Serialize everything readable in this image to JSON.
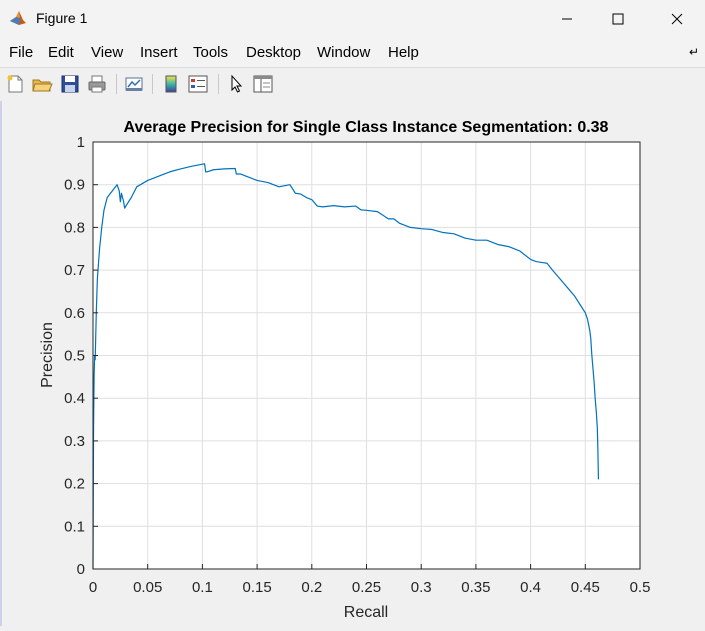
{
  "window": {
    "title": "Figure 1",
    "minimize_icon": "minimize-icon",
    "maximize_icon": "maximize-icon",
    "close_icon": "close-icon"
  },
  "menu": {
    "items": [
      "File",
      "Edit",
      "View",
      "Insert",
      "Tools",
      "Desktop",
      "Window",
      "Help"
    ]
  },
  "toolbar": {
    "buttons": [
      "new-figure-icon",
      "open-file-icon",
      "save-icon",
      "print-icon",
      "link-plot-icon",
      "colorbar-icon",
      "legend-icon",
      "pointer-icon",
      "property-editor-icon"
    ]
  },
  "chart_data": {
    "type": "line",
    "title": "Average Precision for Single Class Instance Segmentation: 0.38",
    "xlabel": "Recall",
    "ylabel": "Precision",
    "xlim": [
      0,
      0.5
    ],
    "ylim": [
      0,
      1
    ],
    "xticks": [
      "0",
      "0.05",
      "0.1",
      "0.15",
      "0.2",
      "0.25",
      "0.3",
      "0.35",
      "0.4",
      "0.45",
      "0.5"
    ],
    "yticks": [
      "0",
      "0.1",
      "0.2",
      "0.3",
      "0.4",
      "0.5",
      "0.6",
      "0.7",
      "0.8",
      "0.9",
      "1"
    ],
    "grid": true,
    "line_color": "#0072bd",
    "series": [
      {
        "x": [
          0.0,
          0.0005,
          0.001,
          0.0015,
          0.002,
          0.003,
          0.004,
          0.006,
          0.008,
          0.01,
          0.013,
          0.016,
          0.019,
          0.022,
          0.024,
          0.025,
          0.026,
          0.028,
          0.029,
          0.03,
          0.035,
          0.04,
          0.05,
          0.06,
          0.07,
          0.08,
          0.09,
          0.1,
          0.102,
          0.103,
          0.104,
          0.11,
          0.12,
          0.13,
          0.131,
          0.135,
          0.14,
          0.15,
          0.16,
          0.165,
          0.17,
          0.18,
          0.185,
          0.19,
          0.195,
          0.2,
          0.205,
          0.21,
          0.22,
          0.23,
          0.24,
          0.245,
          0.25,
          0.26,
          0.27,
          0.275,
          0.28,
          0.29,
          0.3,
          0.31,
          0.32,
          0.33,
          0.34,
          0.35,
          0.36,
          0.37,
          0.38,
          0.39,
          0.4,
          0.405,
          0.41,
          0.415,
          0.42,
          0.425,
          0.43,
          0.435,
          0.44,
          0.445,
          0.45,
          0.452,
          0.454,
          0.455,
          0.456,
          0.457,
          0.458,
          0.459,
          0.46,
          0.461,
          0.4615,
          0.462
        ],
        "y": [
          0.0,
          0.33,
          0.45,
          0.5,
          0.49,
          0.6,
          0.68,
          0.75,
          0.8,
          0.84,
          0.87,
          0.88,
          0.89,
          0.9,
          0.885,
          0.86,
          0.88,
          0.86,
          0.845,
          0.85,
          0.87,
          0.895,
          0.91,
          0.92,
          0.93,
          0.937,
          0.943,
          0.948,
          0.949,
          0.93,
          0.93,
          0.935,
          0.937,
          0.938,
          0.925,
          0.925,
          0.92,
          0.91,
          0.905,
          0.9,
          0.895,
          0.9,
          0.88,
          0.878,
          0.87,
          0.865,
          0.85,
          0.848,
          0.851,
          0.848,
          0.85,
          0.841,
          0.84,
          0.837,
          0.82,
          0.82,
          0.81,
          0.8,
          0.797,
          0.795,
          0.788,
          0.785,
          0.775,
          0.77,
          0.77,
          0.76,
          0.755,
          0.745,
          0.725,
          0.72,
          0.718,
          0.716,
          0.7,
          0.685,
          0.67,
          0.655,
          0.64,
          0.62,
          0.6,
          0.585,
          0.56,
          0.54,
          0.5,
          0.47,
          0.44,
          0.4,
          0.37,
          0.33,
          0.28,
          0.21
        ]
      }
    ]
  }
}
